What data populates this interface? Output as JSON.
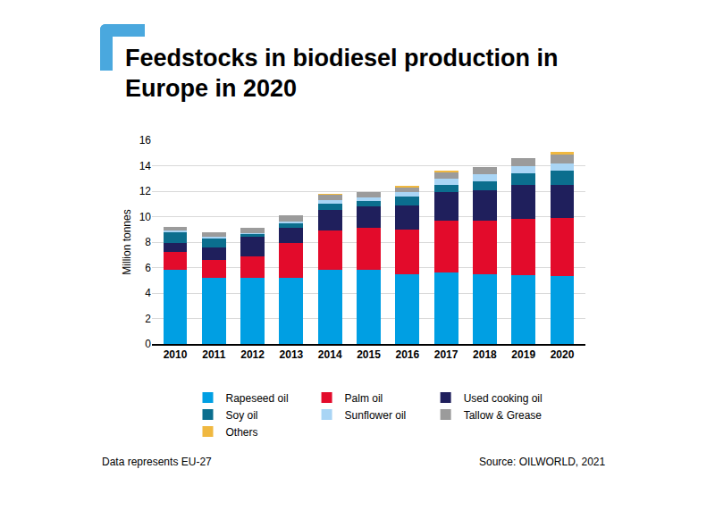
{
  "chart_data": {
    "type": "bar",
    "title": "Feedstocks in biodiesel production in Europe in 2020",
    "y_label": "Million tonnes",
    "categories": [
      "2010",
      "2011",
      "2012",
      "2013",
      "2014",
      "2015",
      "2016",
      "2017",
      "2018",
      "2019",
      "2020"
    ],
    "series": [
      {
        "name": "Rapeseed oil",
        "color": "#009fe3",
        "values": [
          5.8,
          5.2,
          5.2,
          5.2,
          5.8,
          5.8,
          5.5,
          5.6,
          5.5,
          5.4,
          5.3
        ]
      },
      {
        "name": "Palm oil",
        "color": "#e30b2b",
        "values": [
          1.4,
          1.4,
          1.7,
          2.7,
          3.1,
          3.3,
          3.5,
          4.1,
          4.2,
          4.4,
          4.6
        ]
      },
      {
        "name": "Used cooking oil",
        "color": "#1f1f5c",
        "values": [
          0.7,
          1.0,
          1.5,
          1.2,
          1.6,
          1.7,
          1.9,
          2.2,
          2.4,
          2.7,
          2.6
        ]
      },
      {
        "name": "Soy oil",
        "color": "#0b6e8e",
        "values": [
          0.9,
          0.7,
          0.2,
          0.4,
          0.5,
          0.4,
          0.7,
          0.6,
          0.7,
          0.9,
          1.1
        ]
      },
      {
        "name": "Sunflower oil",
        "color": "#a9d5f5",
        "values": [
          0.1,
          0.1,
          0.1,
          0.1,
          0.3,
          0.3,
          0.3,
          0.5,
          0.5,
          0.6,
          0.6
        ]
      },
      {
        "name": "Tallow & Grease",
        "color": "#9b9b9b",
        "values": [
          0.3,
          0.4,
          0.4,
          0.5,
          0.4,
          0.4,
          0.4,
          0.5,
          0.6,
          0.6,
          0.7
        ]
      },
      {
        "name": "Others",
        "color": "#f0b840",
        "values": [
          0,
          0,
          0,
          0,
          0.1,
          0,
          0.1,
          0.1,
          0,
          0,
          0.2
        ]
      }
    ],
    "stacked": true,
    "ylim": [
      0,
      16
    ],
    "yticks": [
      0,
      2,
      4,
      6,
      8,
      10,
      12,
      14,
      16
    ],
    "grid": true,
    "legend": "bottom",
    "annotations": [
      "Data represents EU-27",
      "Source: OILWORLD, 2021"
    ]
  }
}
